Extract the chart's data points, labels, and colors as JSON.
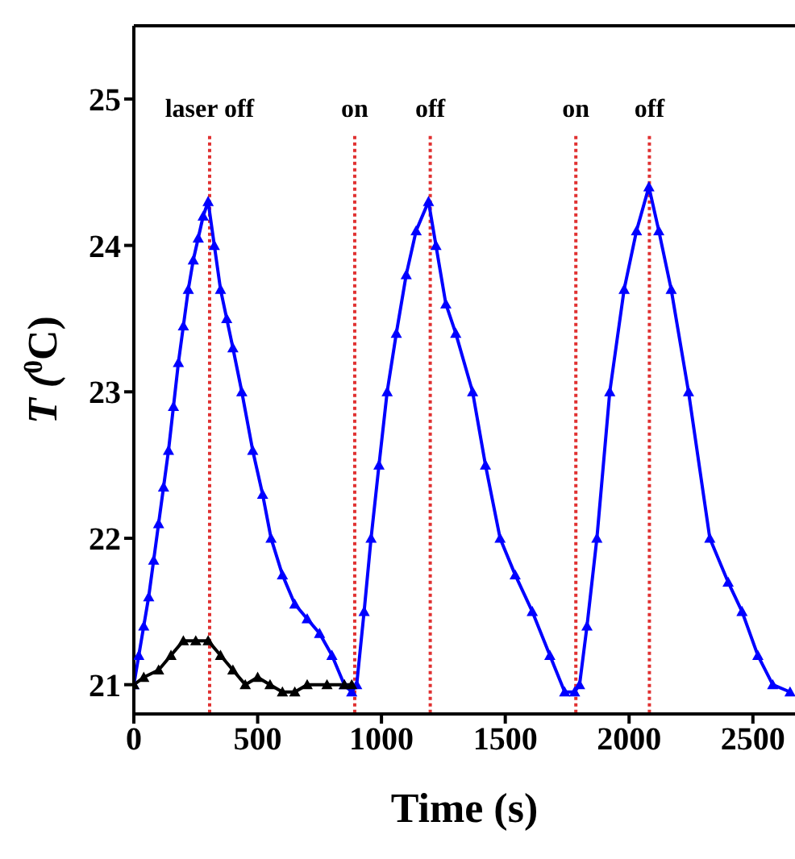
{
  "chart_data": {
    "type": "line",
    "xlabel": "Time (s)",
    "ylabel": "T ($^{0}$C)",
    "xlim": [
      0,
      2670
    ],
    "xticks": [
      0,
      500,
      1000,
      1500,
      2000,
      2500
    ],
    "ylim": [
      20.8,
      25.5
    ],
    "yticks": [
      21,
      22,
      23,
      24,
      25
    ],
    "grid": false,
    "legend": false,
    "marker": "triangle",
    "line_style": "solid",
    "series": [
      {
        "color": "#0000ff",
        "x": [
          0,
          20,
          40,
          60,
          80,
          100,
          120,
          140,
          160,
          180,
          200,
          220,
          240,
          260,
          280,
          300,
          325,
          350,
          375,
          400,
          436,
          480,
          520,
          554,
          600,
          650,
          700,
          750,
          800,
          850,
          880,
          900,
          930,
          958,
          990,
          1023,
          1060,
          1100,
          1140,
          1190,
          1220,
          1260,
          1300,
          1368,
          1420,
          1479,
          1540,
          1609,
          1680,
          1740,
          1780,
          1800,
          1830,
          1870,
          1922,
          1980,
          2030,
          2080,
          2120,
          2170,
          2240,
          2326,
          2400,
          2456,
          2520,
          2580,
          2650
        ],
        "values": [
          21.0,
          21.2,
          21.4,
          21.6,
          21.85,
          22.1,
          22.35,
          22.6,
          22.9,
          23.2,
          23.45,
          23.7,
          23.9,
          24.05,
          24.2,
          24.3,
          24.0,
          23.7,
          23.5,
          23.3,
          23.0,
          22.6,
          22.3,
          22.0,
          21.75,
          21.55,
          21.45,
          21.35,
          21.2,
          21.0,
          20.95,
          21.0,
          21.5,
          22.0,
          22.5,
          23.0,
          23.4,
          23.8,
          24.1,
          24.3,
          24.0,
          23.6,
          23.4,
          23.0,
          22.5,
          22.0,
          21.75,
          21.5,
          21.2,
          20.95,
          20.95,
          21.0,
          21.4,
          22.0,
          23.0,
          23.7,
          24.1,
          24.4,
          24.1,
          23.7,
          23.0,
          22.0,
          21.7,
          21.5,
          21.2,
          21.0,
          20.95
        ]
      },
      {
        "color": "#000000",
        "x": [
          0,
          40,
          100,
          150,
          200,
          250,
          300,
          350,
          400,
          450,
          500,
          550,
          600,
          650,
          700,
          780,
          850,
          880
        ],
        "values": [
          21.0,
          21.05,
          21.1,
          21.2,
          21.3,
          21.3,
          21.3,
          21.2,
          21.1,
          21.0,
          21.05,
          21.0,
          20.95,
          20.95,
          21.0,
          21.0,
          21.0,
          21.0
        ]
      }
    ],
    "ref_lines": [
      {
        "axis": "x",
        "value": 306,
        "label": "laser off",
        "color": "#e03030",
        "line_style": "dotted"
      },
      {
        "axis": "x",
        "value": 892,
        "label": "on",
        "color": "#e03030",
        "line_style": "dotted"
      },
      {
        "axis": "x",
        "value": 1197,
        "label": "off",
        "color": "#e03030",
        "line_style": "dotted"
      },
      {
        "axis": "x",
        "value": 1785,
        "label": "on",
        "color": "#e03030",
        "line_style": "dotted"
      },
      {
        "axis": "x",
        "value": 2082,
        "label": "off",
        "color": "#e03030",
        "line_style": "dotted"
      }
    ]
  }
}
